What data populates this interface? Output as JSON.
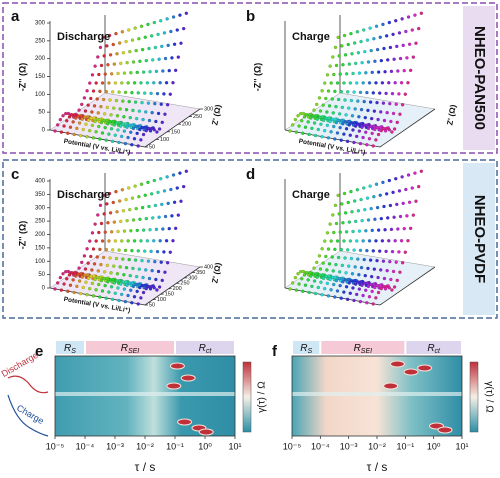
{
  "groups": [
    {
      "label": "NHEO-PAN500"
    },
    {
      "label": "NHEO-PVDF"
    }
  ],
  "panels": [
    {
      "label": "a",
      "title": "Discharge",
      "z_label": "-Z'' (Ω)",
      "zticks": [
        0,
        50,
        100,
        150,
        200,
        250,
        300
      ],
      "x_label": "Z' (Ω)",
      "xticks": [
        50,
        100,
        150,
        200,
        250,
        300
      ],
      "potential_label": "Potential (V vs. Li/Li⁺)"
    },
    {
      "label": "b",
      "title": "Charge",
      "z_label": "-Z'' (Ω)",
      "x_label": "Z' (Ω)",
      "potential_label": "Potential (V vs. Li/Li⁺)"
    },
    {
      "label": "c",
      "title": "Discharge",
      "z_label": "-Z'' (Ω)",
      "zticks": [
        0,
        50,
        100,
        150,
        200,
        250,
        300,
        350,
        400
      ],
      "x_label": "Z' (Ω)",
      "xticks": [
        50,
        100,
        150,
        200,
        250,
        300,
        350,
        400
      ],
      "potential_label": "Potential (V vs. Li/Li⁺)"
    },
    {
      "label": "d",
      "title": "Charge"
    }
  ],
  "drt": {
    "legend": [
      "Discharge",
      "Charge"
    ],
    "panels": [
      {
        "label": "e"
      },
      {
        "label": "f"
      }
    ],
    "regions": [
      {
        "base": "R",
        "sub": "S"
      },
      {
        "base": "R",
        "sub": "SEI"
      },
      {
        "base": "R",
        "sub": "ct"
      }
    ],
    "xlim": [
      1e-05,
      10
    ],
    "xticks": [
      {
        "value": 1e-05,
        "label": "10⁻⁵"
      },
      {
        "value": 0.0001,
        "label": "10⁻⁴"
      },
      {
        "value": 0.001,
        "label": "10⁻³"
      },
      {
        "value": 0.01,
        "label": "10⁻²"
      },
      {
        "value": 0.1,
        "label": "10⁻¹"
      },
      {
        "value": 1,
        "label": "10⁰"
      },
      {
        "value": 10,
        "label": "10¹"
      }
    ],
    "x_label": "τ / s",
    "colorbar_label": "γ(τ) / Ω"
  }
}
